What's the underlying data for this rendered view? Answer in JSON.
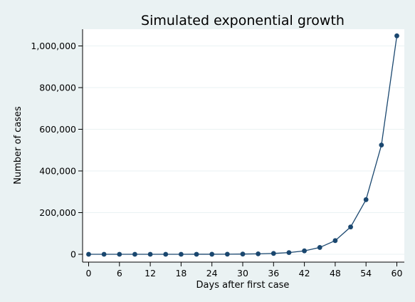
{
  "chart_data": {
    "type": "line",
    "title": "Simulated exponential growth",
    "xlabel": "Days after first case",
    "ylabel": "Number of cases",
    "xlim": [
      0,
      60
    ],
    "ylim": [
      0,
      1050000
    ],
    "xticks": [
      0,
      6,
      12,
      18,
      24,
      30,
      36,
      42,
      48,
      54,
      60
    ],
    "xtick_labels": [
      "0",
      "6",
      "12",
      "18",
      "24",
      "30",
      "36",
      "42",
      "48",
      "54",
      "60"
    ],
    "yticks": [
      0,
      200000,
      400000,
      600000,
      800000,
      1000000
    ],
    "ytick_labels": [
      "0",
      "200,000",
      "400,000",
      "600,000",
      "800,000",
      "1,000,000"
    ],
    "grid": true,
    "legend": "none",
    "colors": {
      "background": "#eaf2f3",
      "plot": "#ffffff",
      "series": "#1a476f",
      "grid": "#eaf2f3"
    },
    "series": [
      {
        "x": [
          0,
          3,
          6,
          9,
          12,
          15,
          18,
          21,
          24,
          27,
          30,
          33,
          36,
          39,
          42,
          45,
          48,
          51,
          54,
          57,
          60
        ],
        "y": [
          1,
          2,
          4,
          8,
          16,
          32,
          64,
          128,
          256,
          512,
          1024,
          2048,
          4096,
          8192,
          16384,
          32768,
          65536,
          131072,
          262144,
          524288,
          1048576
        ]
      }
    ]
  }
}
